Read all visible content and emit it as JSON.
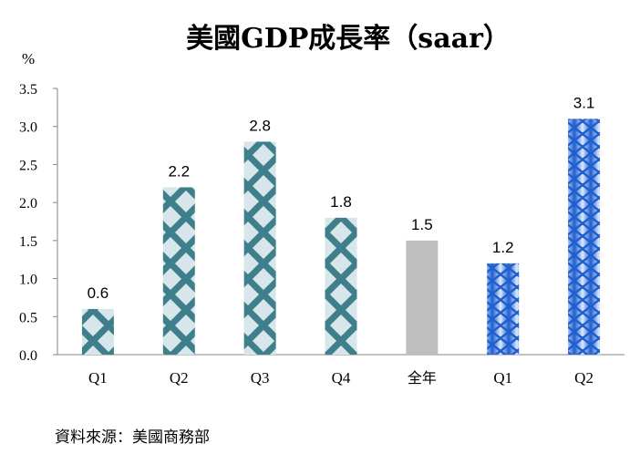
{
  "chart_data": {
    "type": "bar",
    "title": "美國GDP成長率（saar）",
    "ylabel": "%",
    "xlabel": "",
    "categories": [
      "Q1",
      "Q2",
      "Q3",
      "Q4",
      "全年",
      "Q1",
      "Q2"
    ],
    "values": [
      0.6,
      2.2,
      2.8,
      1.8,
      1.5,
      1.2,
      3.1
    ],
    "value_labels": [
      "0.6",
      "2.2",
      "2.8",
      "1.8",
      "1.5",
      "1.2",
      "3.1"
    ],
    "ylim": [
      0,
      3.5
    ],
    "yticks": [
      "0.0",
      "0.5",
      "1.0",
      "1.5",
      "2.0",
      "2.5",
      "3.0",
      "3.5"
    ],
    "grid": false,
    "legend": "none",
    "bar_styles": [
      "teal-pattern",
      "teal-pattern",
      "teal-pattern",
      "teal-pattern",
      "gray-solid",
      "blue-pattern",
      "blue-pattern"
    ],
    "colors": {
      "teal_dark": "#3f7f8c",
      "teal_light": "#d6e6ea",
      "gray": "#bfbfbf",
      "blue_dark": "#1f5fcf",
      "blue_light": "#dbe8fa",
      "highlight_label": "#e02020",
      "axis": "#868686"
    },
    "label_colors": [
      "#000000",
      "#000000",
      "#000000",
      "#000000",
      "#000000",
      "#000000",
      "#e02020"
    ]
  },
  "source": "資料來源：美國商務部"
}
